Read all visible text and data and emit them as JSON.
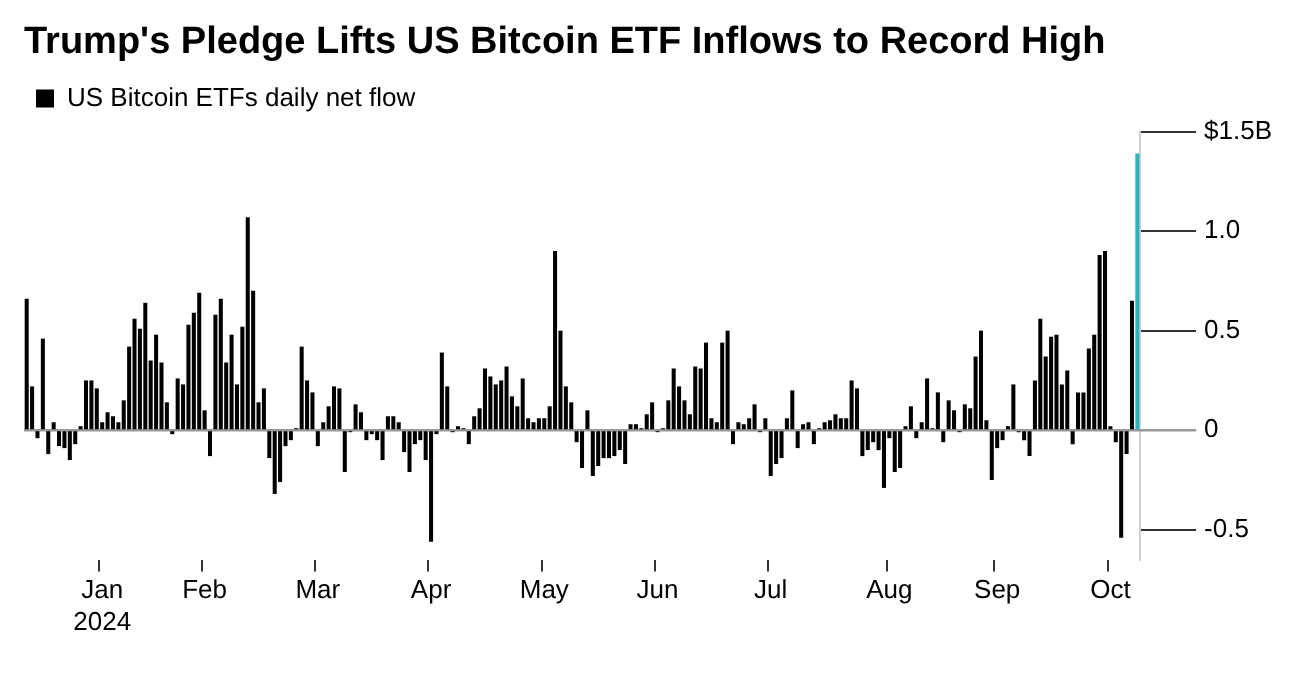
{
  "chart_data": {
    "type": "bar",
    "title": "Trump's Pledge Lifts US Bitcoin ETF Inflows to Record High",
    "categories": [
      null,
      null,
      null,
      null,
      null,
      null,
      null,
      null,
      null,
      null,
      null,
      null,
      null,
      null,
      "Jan\n2024",
      null,
      null,
      null,
      null,
      null,
      null,
      null,
      null,
      null,
      null,
      null,
      null,
      null,
      null,
      null,
      null,
      null,
      null,
      "Feb",
      null,
      null,
      null,
      null,
      null,
      null,
      null,
      null,
      null,
      null,
      null,
      null,
      null,
      null,
      null,
      null,
      null,
      null,
      null,
      null,
      "Mar",
      null,
      null,
      null,
      null,
      null,
      null,
      null,
      null,
      null,
      null,
      null,
      null,
      null,
      null,
      null,
      null,
      null,
      null,
      null,
      null,
      "Apr",
      null,
      null,
      null,
      null,
      null,
      null,
      null,
      null,
      null,
      null,
      null,
      null,
      null,
      null,
      null,
      null,
      null,
      null,
      null,
      null,
      "May",
      null,
      null,
      null,
      null,
      null,
      null,
      null,
      null,
      null,
      null,
      null,
      null,
      null,
      null,
      null,
      null,
      null,
      null,
      null,
      null,
      "Jun",
      null,
      null,
      null,
      null,
      null,
      null,
      null,
      null,
      null,
      null,
      null,
      null,
      null,
      null,
      null,
      null,
      null,
      null,
      null,
      null,
      "Jul",
      null,
      null,
      null,
      null,
      null,
      null,
      null,
      null,
      null,
      null,
      null,
      null,
      null,
      null,
      null,
      null,
      null,
      null,
      null,
      null,
      null,
      "Aug",
      null,
      null,
      null,
      null,
      null,
      null,
      null,
      null,
      null,
      null,
      null,
      null,
      null,
      null,
      null,
      null,
      null,
      null,
      null,
      "Sep",
      null,
      null,
      null,
      null,
      null,
      null,
      null,
      null,
      null,
      null,
      null,
      null,
      null,
      null,
      null,
      null,
      null,
      null,
      null,
      null,
      "Oct",
      null,
      null,
      null,
      null,
      null
    ],
    "series": [
      {
        "name": "US Bitcoin ETFs daily net flow",
        "color": "#000000",
        "colors": [
          "#000000",
          "#000000",
          "#000000",
          "#000000",
          "#000000",
          "#000000",
          "#000000",
          "#000000",
          "#000000",
          "#000000",
          "#000000",
          "#000000",
          "#000000",
          "#000000",
          "#000000",
          "#000000",
          "#000000",
          "#000000",
          "#000000",
          "#000000",
          "#000000",
          "#000000",
          "#000000",
          "#000000",
          "#000000",
          "#000000",
          "#000000",
          "#000000",
          "#000000",
          "#000000",
          "#000000",
          "#000000",
          "#000000",
          "#000000",
          "#000000",
          "#000000",
          "#000000",
          "#000000",
          "#000000",
          "#000000",
          "#000000",
          "#000000",
          "#000000",
          "#000000",
          "#000000",
          "#000000",
          "#000000",
          "#000000",
          "#000000",
          "#000000",
          "#000000",
          "#000000",
          "#000000",
          "#000000",
          "#000000",
          "#000000",
          "#000000",
          "#000000",
          "#000000",
          "#000000",
          "#000000",
          "#000000",
          "#000000",
          "#000000",
          "#000000",
          "#000000",
          "#000000",
          "#000000",
          "#000000",
          "#000000",
          "#000000",
          "#000000",
          "#000000",
          "#000000",
          "#000000",
          "#000000",
          "#000000",
          "#000000",
          "#000000",
          "#000000",
          "#000000",
          "#000000",
          "#000000",
          "#000000",
          "#000000",
          "#000000",
          "#000000",
          "#000000",
          "#000000",
          "#000000",
          "#000000",
          "#000000",
          "#000000",
          "#000000",
          "#000000",
          "#000000",
          "#000000",
          "#000000",
          "#000000",
          "#000000",
          "#000000",
          "#000000",
          "#000000",
          "#000000",
          "#000000",
          "#000000",
          "#000000",
          "#000000",
          "#000000",
          "#000000",
          "#000000",
          "#000000",
          "#000000",
          "#000000",
          "#000000",
          "#000000",
          "#000000",
          "#000000",
          "#000000",
          "#000000",
          "#000000",
          "#000000",
          "#000000",
          "#000000",
          "#000000",
          "#000000",
          "#000000",
          "#000000",
          "#000000",
          "#000000",
          "#000000",
          "#000000",
          "#000000",
          "#000000",
          "#000000",
          "#000000",
          "#000000",
          "#000000",
          "#000000",
          "#000000",
          "#000000",
          "#000000",
          "#000000",
          "#000000",
          "#000000",
          "#000000",
          "#000000",
          "#000000",
          "#000000",
          "#000000",
          "#000000",
          "#000000",
          "#000000",
          "#000000",
          "#000000",
          "#000000",
          "#000000",
          "#000000",
          "#000000",
          "#000000",
          "#000000",
          "#000000",
          "#000000",
          "#000000",
          "#000000",
          "#000000",
          "#000000",
          "#000000",
          "#000000",
          "#000000",
          "#000000",
          "#000000",
          "#000000",
          "#000000",
          "#000000",
          "#000000",
          "#000000",
          "#000000",
          "#000000",
          "#000000",
          "#000000",
          "#000000",
          "#000000",
          "#000000",
          "#000000",
          "#000000",
          "#000000",
          "#000000",
          "#000000",
          "#000000",
          "#000000",
          "#000000",
          "#000000",
          "#000000",
          "#000000",
          "#000000",
          "#000000",
          "#000000",
          "#000000",
          "#000000",
          "#000000",
          "#000000",
          "#000000",
          "#000000",
          "#000000",
          "#000000",
          "#2bb3c0"
        ],
        "values": [
          0.66,
          0.22,
          -0.04,
          0.46,
          -0.12,
          0.04,
          -0.08,
          -0.09,
          -0.15,
          -0.07,
          0.02,
          0.25,
          0.25,
          0.21,
          0.04,
          0.09,
          0.07,
          0.04,
          0.15,
          0.42,
          0.56,
          0.51,
          0.64,
          0.35,
          0.48,
          0.34,
          0.14,
          -0.02,
          0.26,
          0.23,
          0.53,
          0.59,
          0.69,
          0.1,
          -0.13,
          0.58,
          0.66,
          0.34,
          0.48,
          0.23,
          0.52,
          1.07,
          0.7,
          0.14,
          0.21,
          -0.14,
          -0.32,
          -0.26,
          -0.08,
          -0.05,
          0.01,
          0.42,
          0.25,
          0.19,
          -0.08,
          0.04,
          0.12,
          0.22,
          0.21,
          -0.21,
          -0.01,
          0.13,
          0.09,
          -0.05,
          -0.02,
          -0.05,
          -0.15,
          0.07,
          0.07,
          0.04,
          -0.11,
          -0.21,
          -0.07,
          -0.05,
          -0.15,
          -0.56,
          -0.02,
          0.39,
          0.22,
          -0.01,
          0.02,
          0.01,
          -0.07,
          0.07,
          0.11,
          0.31,
          0.27,
          0.23,
          0.25,
          0.32,
          0.17,
          0.12,
          0.26,
          0.06,
          0.04,
          0.06,
          0.06,
          0.12,
          0.9,
          0.5,
          0.22,
          0.14,
          -0.06,
          -0.19,
          0.1,
          -0.23,
          -0.18,
          -0.14,
          -0.14,
          -0.13,
          -0.1,
          -0.17,
          0.03,
          0.03,
          0.01,
          0.08,
          0.14,
          -0.01,
          0.01,
          0.15,
          0.31,
          0.22,
          0.15,
          0.08,
          0.32,
          0.31,
          0.44,
          0.06,
          0.04,
          0.44,
          0.5,
          -0.07,
          0.04,
          0.03,
          0.06,
          0.13,
          -0.01,
          0.06,
          -0.23,
          -0.17,
          -0.14,
          0.06,
          0.2,
          -0.09,
          0.03,
          0.04,
          -0.07,
          0.01,
          0.04,
          0.05,
          0.08,
          0.06,
          0.06,
          0.25,
          0.21,
          -0.13,
          -0.1,
          -0.06,
          -0.1,
          -0.29,
          -0.04,
          -0.21,
          -0.19,
          0.02,
          0.12,
          -0.04,
          0.04,
          0.26,
          0.01,
          0.19,
          -0.06,
          0.15,
          0.1,
          -0.01,
          0.13,
          0.11,
          0.37,
          0.5,
          0.05,
          -0.25,
          -0.09,
          -0.05,
          0.02,
          0.23,
          -0.01,
          -0.05,
          -0.13,
          0.25,
          0.56,
          0.37,
          0.47,
          0.48,
          0.23,
          0.3,
          -0.07,
          0.19,
          0.19,
          0.41,
          0.48,
          0.88,
          0.9,
          0.02,
          -0.06,
          -0.54,
          -0.12,
          0.65,
          1.39
        ]
      }
    ],
    "ylim": [
      -0.65,
      1.5
    ],
    "yticks": [
      {
        "value": 1.5,
        "label": "$1.5B"
      },
      {
        "value": 1,
        "label": "1.0"
      },
      0.5,
      0,
      -0.5
    ],
    "ref_lines": [
      {
        "axis": "y",
        "value": 0,
        "color": "#999999"
      }
    ],
    "legend": "top left"
  }
}
